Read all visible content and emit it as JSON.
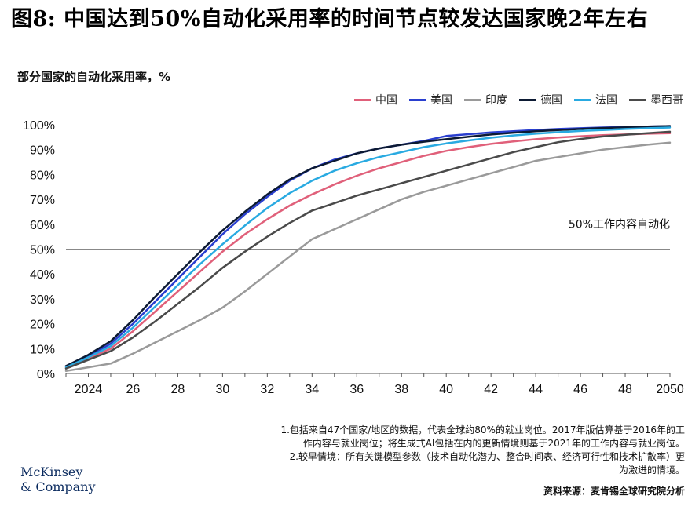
{
  "title": "图8: 中国达到50%自动化采用率的时间节点较发达国家晚2年左右",
  "subtitle": "部分国家的自动化采用率，%",
  "notes": [
    "1.包括来自47个国家/地区的数据，代表全球约80%的就业岗位。2017年版估算基于2016年的工",
    "作内容与就业岗位；将生成式AI包括在内的更新情境则基于2021年的工作内容与就业岗位。",
    "2.较早情境：所有关键模型参数（技术自动化潜力、整合时间表、经济可行性和技术扩散率）更",
    "为激进的情境。"
  ],
  "source": "资料来源：麦肯锡全球研究院分析",
  "logo": [
    "McKinsey",
    "& Company"
  ],
  "chart_data": {
    "type": "line",
    "x": [
      2023,
      2024,
      2025,
      2026,
      2027,
      2028,
      2029,
      2030,
      2031,
      2032,
      2033,
      2034,
      2035,
      2036,
      2037,
      2038,
      2039,
      2040,
      2041,
      2042,
      2043,
      2044,
      2045,
      2046,
      2047,
      2048,
      2049,
      2050
    ],
    "xtick_labels": [
      {
        "x": 2024,
        "label": "2024"
      },
      {
        "x": 2026,
        "label": "26"
      },
      {
        "x": 2028,
        "label": "28"
      },
      {
        "x": 2030,
        "label": "30"
      },
      {
        "x": 2032,
        "label": "32"
      },
      {
        "x": 2034,
        "label": "34"
      },
      {
        "x": 2036,
        "label": "36"
      },
      {
        "x": 2038,
        "label": "38"
      },
      {
        "x": 2040,
        "label": "40"
      },
      {
        "x": 2042,
        "label": "42"
      },
      {
        "x": 2044,
        "label": "44"
      },
      {
        "x": 2046,
        "label": "46"
      },
      {
        "x": 2048,
        "label": "48"
      },
      {
        "x": 2050,
        "label": "2050"
      }
    ],
    "yticks": [
      0,
      10,
      20,
      30,
      40,
      50,
      60,
      70,
      80,
      90,
      100
    ],
    "ytick_labels": [
      "0%",
      "10%",
      "20%",
      "30%",
      "40%",
      "50%",
      "60%",
      "70%",
      "80%",
      "90%",
      "100%"
    ],
    "xlim": [
      2023,
      2050
    ],
    "ylim": [
      0,
      100
    ],
    "reference_line": {
      "y": 50,
      "label": "50%工作内容自动化"
    },
    "legend_position": "top-right",
    "series": [
      {
        "name": "中国",
        "color": "#e0607a",
        "values": [
          2.5,
          6,
          10,
          17,
          25,
          33,
          41,
          49,
          56,
          62,
          67.5,
          72,
          76,
          79.5,
          82.5,
          85,
          87.5,
          89.5,
          91,
          92.3,
          93.3,
          94.2,
          94.9,
          95.4,
          95.8,
          96.1,
          96.4,
          96.6
        ]
      },
      {
        "name": "美国",
        "color": "#2a3fcf",
        "values": [
          3,
          7,
          12,
          20,
          29,
          38,
          47,
          56,
          64,
          71,
          77.5,
          82.5,
          86,
          88.5,
          90.5,
          92,
          93.5,
          95.5,
          96.2,
          96.9,
          97.4,
          97.9,
          98.3,
          98.6,
          98.9,
          99.1,
          99.3,
          99.5
        ]
      },
      {
        "name": "印度",
        "color": "#9a9a9a",
        "values": [
          1,
          2.5,
          4,
          8,
          12.5,
          17,
          21.5,
          26.5,
          33,
          40,
          47,
          54,
          58,
          62,
          66,
          70,
          73,
          75.5,
          78,
          80.5,
          83,
          85.5,
          87,
          88.5,
          90,
          91,
          92,
          92.8
        ]
      },
      {
        "name": "德国",
        "color": "#0c1a33",
        "values": [
          3,
          7.5,
          13,
          21.5,
          31,
          40,
          49,
          57.5,
          65,
          72,
          78,
          82.5,
          85.5,
          88.5,
          90.5,
          92,
          93.2,
          94.2,
          95.2,
          96.1,
          96.8,
          97.4,
          97.9,
          98.3,
          98.7,
          99,
          99.3,
          99.5
        ]
      },
      {
        "name": "法国",
        "color": "#29aae1",
        "values": [
          2.5,
          6.5,
          11,
          18.5,
          27,
          35.5,
          44,
          52,
          59.5,
          66.5,
          72.5,
          77.5,
          81.5,
          84.5,
          87,
          89,
          91,
          92.5,
          93.7,
          94.8,
          95.7,
          96.4,
          97,
          97.5,
          97.9,
          98.3,
          98.6,
          98.9
        ]
      },
      {
        "name": "墨西哥",
        "color": "#4a4a4a",
        "values": [
          2,
          5.5,
          9,
          14.5,
          21,
          28,
          35,
          42.5,
          49,
          55,
          60.5,
          65.5,
          68.5,
          71.5,
          74,
          76.5,
          79,
          81.5,
          84,
          86.5,
          89,
          91,
          93,
          94.3,
          95.3,
          96,
          96.6,
          97.2
        ]
      }
    ]
  }
}
